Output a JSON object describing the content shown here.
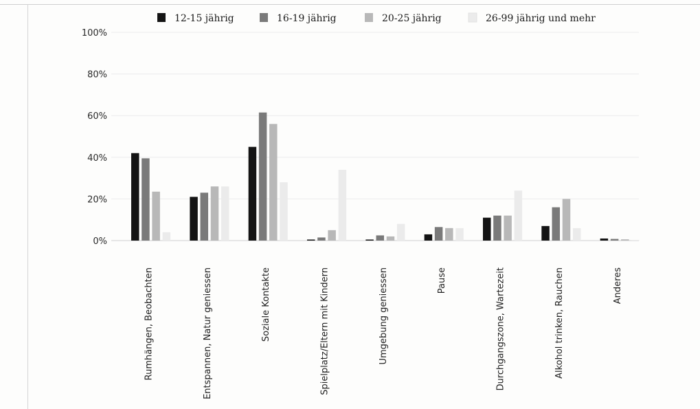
{
  "chart_data": {
    "type": "bar",
    "title": "",
    "xlabel": "",
    "ylabel": "",
    "ylim": [
      0,
      100
    ],
    "yticks": [
      "0%",
      "20%",
      "40%",
      "60%",
      "80%",
      "100%"
    ],
    "grid": true,
    "legend_position": "top",
    "categories": [
      "Rumhängen, Beobachten",
      "Entspannen, Natur geniessen",
      "Soziale Kontakte",
      "Spielplatz/Eltern mit Kindern",
      "Umgebung geniessen",
      "Pause",
      "Durchgangszone, Wartezeit",
      "Alkohol trinken, Rauchen",
      "Anderes"
    ],
    "series": [
      {
        "name": "12-15 jährig",
        "color": "#141414",
        "values": [
          42,
          21,
          45,
          0.5,
          0.5,
          3,
          11,
          7,
          1
        ]
      },
      {
        "name": "16-19 jährig",
        "color": "#7a7a7a",
        "values": [
          39.5,
          23,
          61.5,
          1.5,
          2.5,
          6.5,
          12,
          16,
          0.8
        ]
      },
      {
        "name": "20-25 jährig",
        "color": "#b8b8b8",
        "values": [
          23.5,
          26,
          56,
          5,
          2,
          6,
          12,
          20,
          0.6
        ]
      },
      {
        "name": "26-99 jährig und mehr",
        "color": "#ebebeb",
        "values": [
          4,
          26,
          28,
          34,
          8,
          6,
          24,
          6,
          0.3
        ]
      }
    ]
  }
}
